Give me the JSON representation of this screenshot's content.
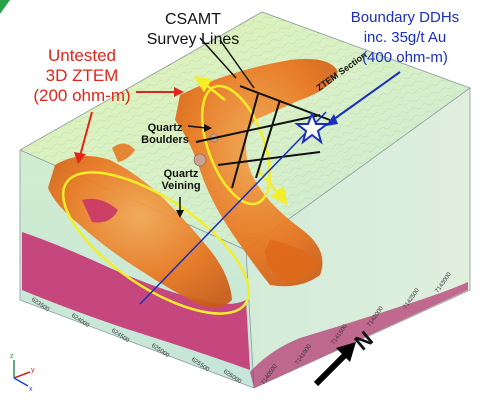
{
  "colors": {
    "anomaly_orange": "#e8731c",
    "anomaly_core": "#c42a6e",
    "ellipse_yellow": "#f4ee2a",
    "drill_blue": "#1a2fbd",
    "label_red": "#e0261b"
  },
  "labels": {
    "csamt_title": [
      "CSAMT",
      "Survey Lines"
    ],
    "ddh_title": [
      "Boundary DDHs",
      "inc. 35g/t Au",
      "(400 ohm-m)"
    ],
    "ztem_untested": [
      "Untested",
      "3D ZTEM",
      "(200 ohm-m)"
    ],
    "quartz_boulders": [
      "Quartz",
      "Boulders"
    ],
    "quartz_veining": [
      "Quartz",
      "Veining"
    ],
    "ztem_section": "ZTEM Section",
    "north_arrow": "N"
  },
  "axis_ticks": {
    "easting": [
      "623500",
      "624000",
      "624500",
      "625000",
      "625500",
      "626000"
    ],
    "northing": [
      "7140500",
      "7141000",
      "7141500",
      "7142000",
      "7142500",
      "7143000"
    ]
  },
  "icons": [
    "star-icon",
    "north-arrow-icon",
    "axis-triad-icon"
  ]
}
